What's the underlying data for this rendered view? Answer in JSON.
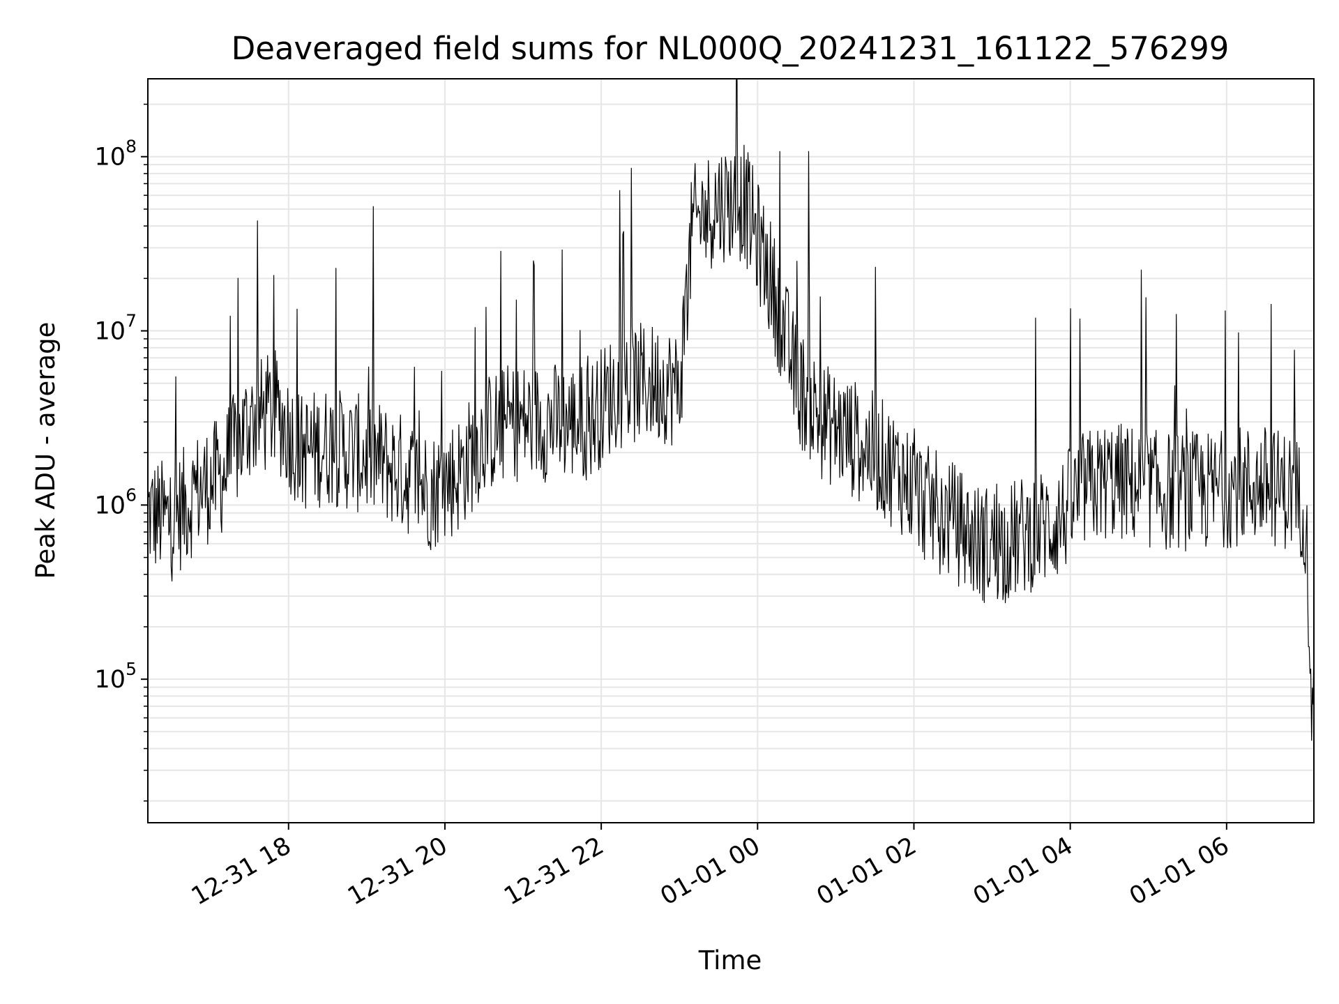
{
  "chart_data": {
    "type": "line",
    "title": "Deaveraged field sums for NL000Q_20241231_161122_576299",
    "xlabel": "Time",
    "ylabel": "Peak ADU - average",
    "yscale": "log",
    "xlim": [
      "2024-12-31 16:12",
      "2025-01-01 07:07"
    ],
    "ylim": [
      15000,
      280000000
    ],
    "grid": true,
    "x_ticks": [
      {
        "value": "2024-12-31 18:00",
        "label": "12-31 18"
      },
      {
        "value": "2024-12-31 20:00",
        "label": "12-31 20"
      },
      {
        "value": "2024-12-31 22:00",
        "label": "12-31 22"
      },
      {
        "value": "2025-01-01 00:00",
        "label": "01-01 00"
      },
      {
        "value": "2025-01-01 02:00",
        "label": "01-01 02"
      },
      {
        "value": "2025-01-01 04:00",
        "label": "01-01 04"
      },
      {
        "value": "2025-01-01 06:00",
        "label": "01-01 06"
      }
    ],
    "y_ticks": [
      {
        "value": 100000,
        "base": "10",
        "exp": "5"
      },
      {
        "value": 1000000,
        "base": "10",
        "exp": "6"
      },
      {
        "value": 10000000,
        "base": "10",
        "exp": "7"
      },
      {
        "value": 100000000,
        "base": "10",
        "exp": "8"
      }
    ],
    "line_color": "#000000",
    "grid_color": "#e6e6e6",
    "series": [
      {
        "x": [
          "2024-12-31 16:12",
          "2024-12-31 16:30",
          "2024-12-31 16:50",
          "2024-12-31 17:10",
          "2024-12-31 17:30",
          "2024-12-31 17:50",
          "2024-12-31 18:10",
          "2024-12-31 18:30",
          "2024-12-31 18:50",
          "2024-12-31 19:10",
          "2024-12-31 19:30",
          "2024-12-31 19:50",
          "2024-12-31 20:10",
          "2024-12-31 20:30",
          "2024-12-31 20:50",
          "2024-12-31 21:10",
          "2024-12-31 21:30",
          "2024-12-31 21:50",
          "2024-12-31 22:10",
          "2024-12-31 22:30",
          "2024-12-31 22:50",
          "2024-12-31 23:00",
          "2024-12-31 23:10",
          "2024-12-31 23:30",
          "2024-12-31 23:50",
          "2025-01-01 00:10",
          "2025-01-01 00:30",
          "2025-01-01 00:50",
          "2025-01-01 01:10",
          "2025-01-01 01:30",
          "2025-01-01 01:50",
          "2025-01-01 02:10",
          "2025-01-01 02:30",
          "2025-01-01 02:50",
          "2025-01-01 03:10",
          "2025-01-01 03:30",
          "2025-01-01 03:50",
          "2025-01-01 04:10",
          "2025-01-01 04:30",
          "2025-01-01 04:50",
          "2025-01-01 05:10",
          "2025-01-01 05:30",
          "2025-01-01 05:50",
          "2025-01-01 06:10",
          "2025-01-01 06:30",
          "2025-01-01 06:50",
          "2025-01-01 07:00",
          "2025-01-01 07:04",
          "2025-01-01 07:06"
        ],
        "y": [
          900000,
          800000,
          1200000,
          1500000,
          3000000,
          3500000,
          2000000,
          2200000,
          2000000,
          1800000,
          1500000,
          1200000,
          1500000,
          2500000,
          3000000,
          3000000,
          3000000,
          3000000,
          4500000,
          5000000,
          5000000,
          4500000,
          40000000,
          55000000,
          55000000,
          20000000,
          5000000,
          3000000,
          2500000,
          2000000,
          1500000,
          1000000,
          800000,
          600000,
          600000,
          700000,
          800000,
          1200000,
          1400000,
          1300000,
          1200000,
          1200000,
          1200000,
          1300000,
          1300000,
          1200000,
          1000000,
          200000,
          40000
        ]
      }
    ]
  }
}
